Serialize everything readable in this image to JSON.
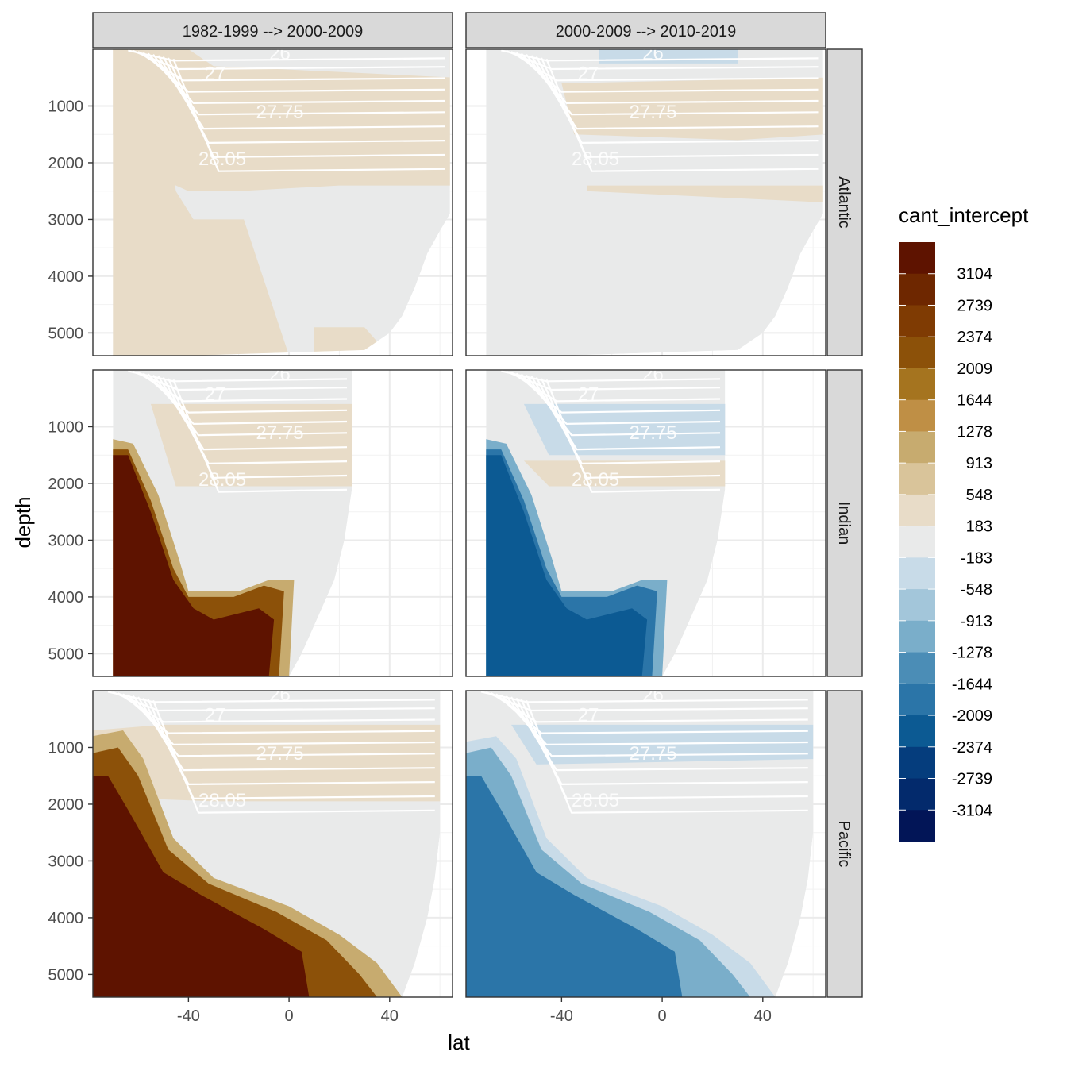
{
  "chart_data": {
    "type": "heatmap",
    "title": "",
    "xlabel": "lat",
    "ylabel": "depth",
    "legend_title": "cant_intercept",
    "legend_position": "right",
    "columns": [
      "1982-1999 --> 2000-2009",
      "2000-2009 --> 2010-2019"
    ],
    "rows": [
      "Atlantic",
      "Indian",
      "Pacific"
    ],
    "x_ticks": [
      -40,
      0,
      40
    ],
    "x_tick_labels": [
      "-40",
      "0",
      "40"
    ],
    "xlim": [
      -78,
      65
    ],
    "y_ticks": [
      1000,
      2000,
      3000,
      4000,
      5000
    ],
    "y_tick_labels": [
      "1000",
      "2000",
      "3000",
      "4000",
      "5000"
    ],
    "ylim": [
      5400,
      0
    ],
    "legend_breaks": [
      "3104",
      "2739",
      "2374",
      "2009",
      "1644",
      "1278",
      "913",
      "548",
      "183",
      "-183",
      "-548",
      "-913",
      "-1278",
      "-1644",
      "-2009",
      "-2374",
      "-2739",
      "-3104"
    ],
    "legend_colors": [
      "#5e1300",
      "#6e2700",
      "#7f3b03",
      "#8c5109",
      "#a5741f",
      "#bf8f45",
      "#c7ab6f",
      "#d9c49a",
      "#e8dcc8",
      "#e9eaea",
      "#c8dbe8",
      "#a3c6da",
      "#7aaeca",
      "#4b8db6",
      "#2b75a8",
      "#0c5a93",
      "#053d7d",
      "#032a6c",
      "#021557"
    ],
    "isopycnal_labels": [
      "26",
      "27",
      "27.75",
      "28.05"
    ],
    "panels": {
      "Atlantic": {
        "lat_extent": [
          -70,
          64
        ],
        "max_depth": 5300,
        "surface_band": "beige",
        "period1_deep": "beige/grey",
        "period2_deep": "grey"
      },
      "Indian": {
        "lat_extent": [
          -70,
          25
        ],
        "max_depth": 5300,
        "period1_bottom": "dark brown (>3104)",
        "period2_bottom": "dark blue (-2009 to -2374)"
      },
      "Pacific": {
        "lat_extent": [
          -78,
          60
        ],
        "max_depth": 5300,
        "period1_bottom": "dark brown (>3104)",
        "period2_bottom": "dark blue (-2009 to -2374)"
      }
    }
  }
}
